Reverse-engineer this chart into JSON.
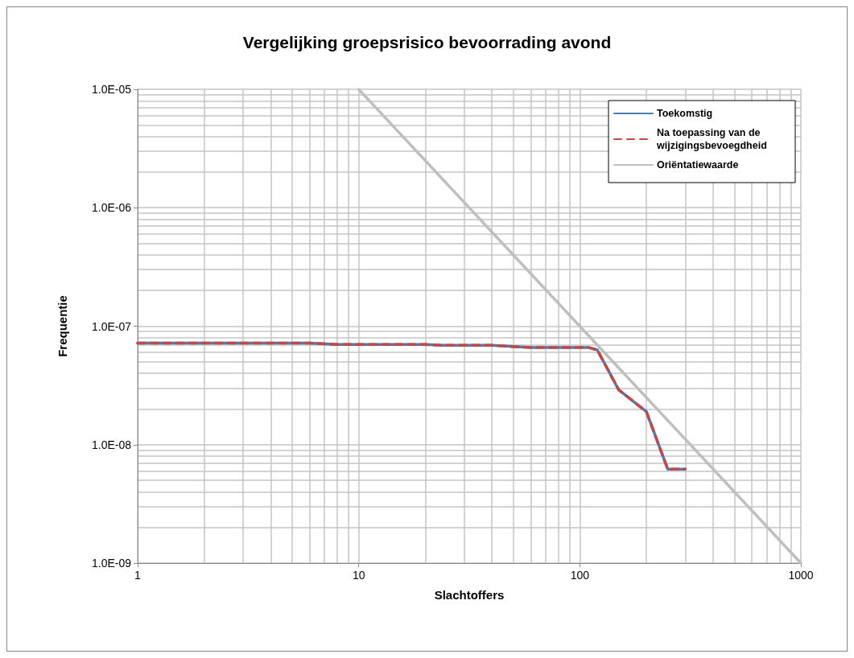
{
  "chart_data": {
    "type": "line",
    "title": "Vergelijking groepsrisico bevoorrading avond",
    "xlabel": "Slachtoffers",
    "ylabel": "Frequentie",
    "log": "xy",
    "grid": true,
    "legend": "top right",
    "xlim": [
      1,
      1000
    ],
    "xticks": [
      1,
      10,
      100,
      1000
    ],
    "ylim": [
      1e-09,
      1e-05
    ],
    "yticks": [
      {
        "value": 1e-09,
        "label": "1.0E-09"
      },
      {
        "value": 1e-08,
        "label": "1.0E-08"
      },
      {
        "value": 1e-07,
        "label": "1.0E-07"
      },
      {
        "value": 1e-06,
        "label": "1.0E-06"
      },
      {
        "value": 1e-05,
        "label": "1.0E-05"
      }
    ],
    "series": [
      {
        "name": "Toekomstig",
        "color": "#4a7ebb",
        "line_style": "solid",
        "x": [
          1,
          6,
          8,
          20,
          24,
          40,
          60,
          110,
          120,
          150,
          200,
          250,
          300
        ],
        "values": [
          7.2e-08,
          7.2e-08,
          7e-08,
          7e-08,
          6.9e-08,
          6.9e-08,
          6.6e-08,
          6.6e-08,
          6.3e-08,
          2.9e-08,
          1.9e-08,
          6.2e-09,
          6.2e-09
        ]
      },
      {
        "name": "Na toepassing van de wijzigingsbevoegdheid",
        "color": "#be4b48",
        "line_style": "dashed",
        "x": [
          1,
          6,
          8,
          20,
          24,
          40,
          60,
          110,
          120,
          150,
          200,
          250,
          300
        ],
        "values": [
          7.2e-08,
          7.2e-08,
          7e-08,
          7e-08,
          6.9e-08,
          6.9e-08,
          6.6e-08,
          6.6e-08,
          6.3e-08,
          2.9e-08,
          1.9e-08,
          6.2e-09,
          6.2e-09
        ]
      },
      {
        "name": "Oriëntatiewaarde",
        "color": "#bfbfbf",
        "line_style": "solid",
        "x": [
          10,
          1000
        ],
        "values": [
          1e-05,
          1e-09
        ]
      }
    ]
  }
}
